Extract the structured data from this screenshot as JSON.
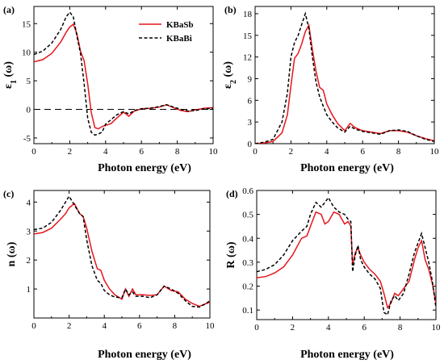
{
  "colors": {
    "KBaSb": "#e8151b",
    "KBaBi": "#000000"
  },
  "chart_data": [
    {
      "type": "line",
      "panel_label": "(a)",
      "xlabel": "Photon energy (eV)",
      "ylabel_main": "ε",
      "ylabel_sub": "1",
      "ylabel_tail": " (ω)",
      "xlim": [
        0,
        10
      ],
      "ylim": [
        -6,
        18
      ],
      "xticks": [
        0,
        2,
        4,
        6,
        8,
        10
      ],
      "yticks": [
        -5,
        0,
        5,
        10,
        15
      ],
      "zero_line": true,
      "legend": {
        "placement": "top-right",
        "entries": [
          "KBaSb",
          "KBaBi"
        ]
      },
      "series": [
        {
          "name": "KBaSb",
          "style": "solid",
          "color": "#e8151b",
          "x": [
            0,
            0.5,
            1.0,
            1.5,
            1.8,
            2.0,
            2.2,
            2.4,
            2.6,
            2.8,
            3.0,
            3.2,
            3.4,
            3.6,
            3.8,
            4.0,
            4.3,
            4.6,
            5.0,
            5.3,
            5.6,
            6.0,
            6.5,
            7.0,
            7.4,
            7.8,
            8.2,
            8.6,
            9.0,
            9.5,
            10.0
          ],
          "y": [
            8.3,
            8.7,
            9.8,
            11.8,
            13.5,
            14.4,
            14.9,
            13.2,
            10.2,
            8.5,
            4.5,
            -0.5,
            -3.2,
            -3.4,
            -3.0,
            -2.8,
            -2.5,
            -1.6,
            -0.5,
            -1.2,
            -0.3,
            0.1,
            0.2,
            0.4,
            0.8,
            0.3,
            -0.2,
            -0.4,
            -0.1,
            0.2,
            0.3
          ]
        },
        {
          "name": "KBaBi",
          "style": "dashed",
          "color": "#000000",
          "x": [
            0,
            0.5,
            1.0,
            1.5,
            1.8,
            2.0,
            2.2,
            2.4,
            2.6,
            2.8,
            3.0,
            3.2,
            3.4,
            3.6,
            3.8,
            4.0,
            4.3,
            4.6,
            5.0,
            5.3,
            5.6,
            6.0,
            6.5,
            7.0,
            7.4,
            7.8,
            8.2,
            8.6,
            9.0,
            9.5,
            10.0
          ],
          "y": [
            9.6,
            10.2,
            11.6,
            14.0,
            16.2,
            17.0,
            16.2,
            12.8,
            9.8,
            4.5,
            -1.5,
            -4.0,
            -4.5,
            -4.3,
            -4.0,
            -2.6,
            -1.8,
            -1.0,
            -0.4,
            -0.8,
            -0.2,
            0.1,
            0.2,
            0.5,
            0.8,
            0.4,
            0.0,
            -0.3,
            -0.2,
            0.1,
            0.2
          ]
        }
      ]
    },
    {
      "type": "line",
      "panel_label": "(b)",
      "xlabel": "Photon energy (eV)",
      "ylabel_main": "ε",
      "ylabel_sub": "2",
      "ylabel_tail": " (ω)",
      "xlim": [
        0,
        10
      ],
      "ylim": [
        0,
        19
      ],
      "xticks": [
        0,
        2,
        4,
        6,
        8,
        10
      ],
      "yticks": [
        0,
        3,
        6,
        9,
        12,
        15,
        18
      ],
      "series": [
        {
          "name": "KBaSb",
          "style": "solid",
          "color": "#e8151b",
          "x": [
            0,
            0.5,
            1.0,
            1.5,
            1.8,
            2.0,
            2.2,
            2.4,
            2.6,
            2.8,
            3.0,
            3.2,
            3.4,
            3.6,
            3.8,
            4.0,
            4.3,
            4.6,
            5.0,
            5.3,
            5.6,
            6.0,
            6.5,
            7.0,
            7.5,
            8.0,
            8.5,
            9.0,
            9.5,
            10.0
          ],
          "y": [
            0,
            0.1,
            0.3,
            1.5,
            4.0,
            8.0,
            11.8,
            12.5,
            13.8,
            15.5,
            16.4,
            13.0,
            10.0,
            7.8,
            7.4,
            5.5,
            4.0,
            2.8,
            1.8,
            2.8,
            2.2,
            1.8,
            1.6,
            1.4,
            1.8,
            1.8,
            1.6,
            1.1,
            0.7,
            0.4
          ]
        },
        {
          "name": "KBaBi",
          "style": "dashed",
          "color": "#000000",
          "x": [
            0,
            0.5,
            1.0,
            1.5,
            1.8,
            2.0,
            2.2,
            2.4,
            2.6,
            2.8,
            3.0,
            3.2,
            3.4,
            3.6,
            3.8,
            4.0,
            4.3,
            4.6,
            5.0,
            5.3,
            5.6,
            6.0,
            6.5,
            7.0,
            7.5,
            8.0,
            8.5,
            9.0,
            9.5,
            10.0
          ],
          "y": [
            0,
            0.2,
            0.6,
            3.0,
            7.0,
            12.0,
            14.0,
            15.0,
            16.5,
            18.0,
            16.0,
            12.0,
            8.5,
            6.5,
            5.2,
            4.0,
            3.0,
            2.2,
            1.6,
            2.4,
            2.0,
            1.7,
            1.5,
            1.3,
            1.8,
            1.9,
            1.7,
            1.1,
            0.6,
            0.3
          ]
        }
      ]
    },
    {
      "type": "line",
      "panel_label": "(c)",
      "xlabel": "Photon energy (eV)",
      "ylabel_main": "n",
      "ylabel_sub": "",
      "ylabel_tail": " (ω)",
      "xlim": [
        0,
        10
      ],
      "ylim": [
        0,
        4.4
      ],
      "xticks": [
        0,
        2,
        4,
        6,
        8,
        10
      ],
      "yticks": [
        1,
        2,
        3,
        4
      ],
      "series": [
        {
          "name": "KBaSb",
          "style": "solid",
          "color": "#e8151b",
          "x": [
            0,
            0.5,
            1.0,
            1.5,
            1.8,
            2.0,
            2.3,
            2.6,
            2.8,
            3.0,
            3.3,
            3.6,
            3.8,
            4.0,
            4.3,
            4.6,
            5.0,
            5.2,
            5.4,
            5.6,
            5.8,
            6.2,
            6.6,
            7.0,
            7.4,
            7.8,
            8.2,
            8.6,
            9.0,
            9.4,
            9.8,
            10.0
          ],
          "y": [
            2.9,
            2.95,
            3.1,
            3.4,
            3.6,
            3.8,
            3.95,
            3.6,
            3.5,
            3.1,
            2.3,
            1.7,
            1.65,
            1.3,
            1.0,
            0.8,
            0.65,
            1.0,
            0.75,
            1.0,
            0.8,
            0.8,
            0.78,
            0.8,
            1.1,
            0.95,
            0.9,
            0.65,
            0.5,
            0.4,
            0.5,
            0.55
          ]
        },
        {
          "name": "KBaBi",
          "style": "dashed",
          "color": "#000000",
          "x": [
            0,
            0.5,
            1.0,
            1.5,
            1.8,
            2.0,
            2.3,
            2.6,
            2.8,
            3.0,
            3.3,
            3.6,
            3.8,
            4.0,
            4.3,
            4.6,
            5.0,
            5.2,
            5.4,
            5.6,
            5.8,
            6.2,
            6.6,
            7.0,
            7.4,
            7.8,
            8.2,
            8.6,
            9.0,
            9.4,
            9.8,
            10.0
          ],
          "y": [
            3.05,
            3.1,
            3.3,
            3.7,
            4.0,
            4.2,
            3.9,
            3.6,
            3.5,
            2.7,
            1.8,
            1.3,
            1.2,
            0.95,
            0.8,
            0.72,
            0.7,
            1.0,
            0.8,
            0.9,
            0.75,
            0.75,
            0.7,
            0.8,
            1.1,
            1.0,
            0.85,
            0.6,
            0.4,
            0.38,
            0.5,
            0.6
          ]
        }
      ]
    },
    {
      "type": "line",
      "panel_label": "(d)",
      "xlabel": "Photon energy (eV)",
      "ylabel_main": "R",
      "ylabel_sub": "",
      "ylabel_tail": " (ω)",
      "xlim": [
        0,
        10
      ],
      "ylim": [
        0.06,
        0.6
      ],
      "xticks": [
        0,
        2,
        4,
        6,
        8,
        10
      ],
      "yticks": [
        0.1,
        0.2,
        0.3,
        0.4,
        0.5,
        0.6
      ],
      "series": [
        {
          "name": "KBaSb",
          "style": "solid",
          "color": "#e8151b",
          "x": [
            0,
            0.5,
            1.0,
            1.5,
            2.0,
            2.5,
            2.8,
            3.0,
            3.3,
            3.6,
            3.8,
            4.0,
            4.3,
            4.6,
            4.9,
            5.1,
            5.25,
            5.35,
            5.5,
            5.65,
            5.8,
            6.0,
            6.3,
            6.6,
            6.9,
            7.1,
            7.3,
            7.5,
            7.7,
            7.9,
            8.2,
            8.5,
            8.8,
            9.0,
            9.2,
            9.4,
            9.6,
            9.8,
            10.0
          ],
          "y": [
            0.235,
            0.24,
            0.255,
            0.28,
            0.33,
            0.4,
            0.41,
            0.45,
            0.51,
            0.5,
            0.46,
            0.47,
            0.51,
            0.5,
            0.46,
            0.47,
            0.45,
            0.29,
            0.34,
            0.36,
            0.33,
            0.3,
            0.27,
            0.25,
            0.22,
            0.17,
            0.11,
            0.13,
            0.17,
            0.16,
            0.19,
            0.22,
            0.31,
            0.36,
            0.39,
            0.31,
            0.27,
            0.21,
            0.13
          ]
        },
        {
          "name": "KBaBi",
          "style": "dashed",
          "color": "#000000",
          "x": [
            0,
            0.5,
            1.0,
            1.5,
            2.0,
            2.5,
            2.8,
            3.0,
            3.3,
            3.6,
            3.8,
            4.0,
            4.3,
            4.6,
            4.9,
            5.1,
            5.25,
            5.35,
            5.5,
            5.65,
            5.8,
            6.0,
            6.3,
            6.6,
            6.9,
            7.1,
            7.3,
            7.5,
            7.7,
            7.9,
            8.2,
            8.5,
            8.8,
            9.0,
            9.2,
            9.4,
            9.6,
            9.8,
            10.0
          ],
          "y": [
            0.26,
            0.27,
            0.29,
            0.33,
            0.39,
            0.43,
            0.45,
            0.5,
            0.55,
            0.53,
            0.55,
            0.57,
            0.53,
            0.51,
            0.5,
            0.48,
            0.47,
            0.26,
            0.33,
            0.37,
            0.31,
            0.28,
            0.25,
            0.23,
            0.19,
            0.09,
            0.08,
            0.14,
            0.16,
            0.14,
            0.17,
            0.25,
            0.34,
            0.38,
            0.42,
            0.36,
            0.3,
            0.22,
            0.11
          ]
        }
      ]
    }
  ]
}
